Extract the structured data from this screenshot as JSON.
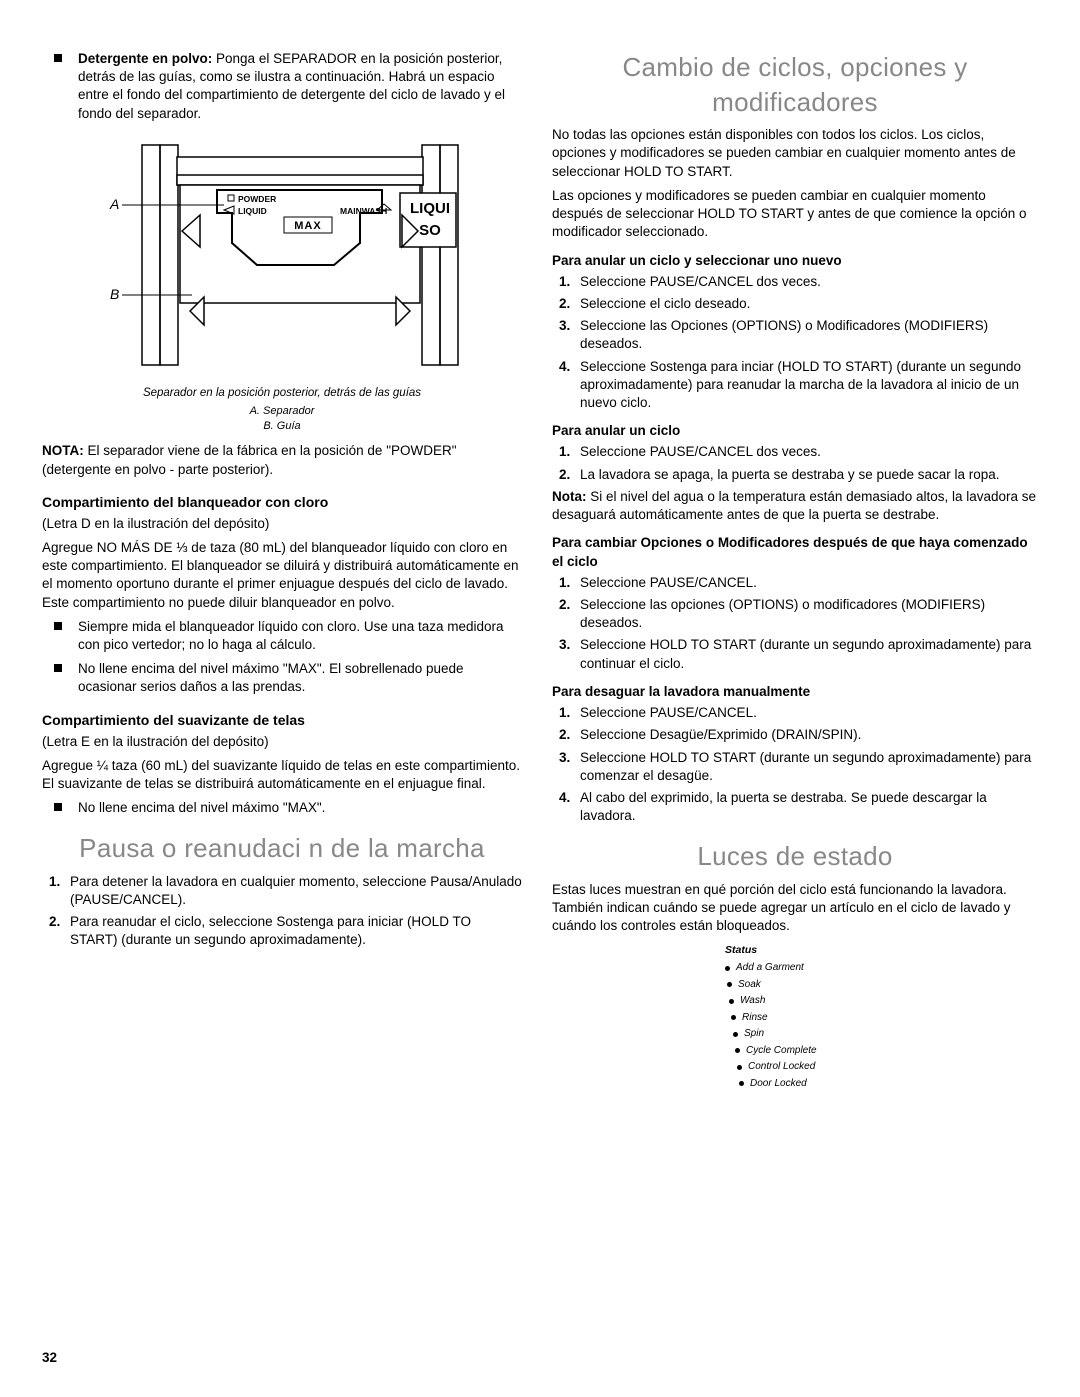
{
  "left": {
    "powder_intro_bold": "Detergente en polvo:",
    "powder_intro_rest": " Ponga el SEPARADOR en la posición posterior, detrás de las guías, como se ilustra a continuación. Habrá un espacio entre el fondo del compartimiento de detergente del ciclo de lavado y el fondo del separador.",
    "diagram": {
      "label_A": "A",
      "label_B": "B",
      "powder": "POWDER",
      "liquid": "LIQUID",
      "mainwash": "MAINWASH",
      "max": "MAX",
      "liqui": "LIQUI",
      "so": "SO"
    },
    "diagram_caption": "Separador en la posición posterior, detrás de las guías",
    "diagram_legend_a": "A. Separador",
    "diagram_legend_b": "B. Guía",
    "nota_bold": "NOTA:",
    "nota_rest": " El separador viene de la fábrica en la posición de \"POWDER\" (detergente en polvo - parte posterior).",
    "bleach_heading": "Compartimiento del blanqueador con cloro",
    "bleach_letra": "(Letra D en la ilustración del depósito)",
    "bleach_p": "Agregue NO MÁS DE ⅓ de taza (80 mL) del blanqueador líquido con cloro en este compartimiento. El blanqueador se diluirá y distribuirá automáticamente en el momento oportuno durante el primer enjuague después del ciclo de lavado. Este compartimiento no puede diluir blanqueador en polvo.",
    "bleach_li1": "Siempre mida el blanqueador líquido con cloro. Use una taza medidora con pico vertedor; no lo haga al cálculo.",
    "bleach_li2": "No llene encima del nivel máximo \"MAX\". El sobrellenado puede ocasionar serios daños a las prendas.",
    "softener_heading": "Compartimiento del suavizante de telas",
    "softener_letra": "(Letra E en la ilustración del depósito)",
    "softener_p": "Agregue ¼ taza (60 mL) del suavizante líquido de telas en este compartimiento. El suavizante de telas se distribuirá automáticamente en el enjuague final.",
    "softener_li1": "No llene encima del nivel máximo \"MAX\".",
    "pausa_heading": "Pausa o reanudaci n de la marcha",
    "pausa_li1": "Para detener la lavadora en cualquier momento, seleccione Pausa/Anulado (PAUSE/CANCEL).",
    "pausa_li2": "Para reanudar el ciclo, seleccione Sostenga para iniciar (HOLD TO START) (durante un segundo aproximadamente)."
  },
  "right": {
    "cambio_heading": "Cambio de ciclos, opciones y modificadores",
    "cambio_p1": "No todas las opciones están disponibles con todos los ciclos. Los ciclos, opciones y modificadores se pueden cambiar en cualquier momento antes de seleccionar HOLD TO START.",
    "cambio_p2": "Las opciones y modificadores se pueden cambiar en cualquier momento después de seleccionar HOLD TO START y antes de que comience la opción o modificador seleccionado.",
    "anular_nuevo_h": "Para anular un ciclo y seleccionar uno nuevo",
    "anular_nuevo_l1": "Seleccione PAUSE/CANCEL dos veces.",
    "anular_nuevo_l2": "Seleccione el ciclo deseado.",
    "anular_nuevo_l3": "Seleccione las Opciones (OPTIONS) o Modificadores (MODIFIERS) deseados.",
    "anular_nuevo_l4": "Seleccione Sostenga para inciar (HOLD TO START) (durante un segundo aproximadamente) para reanudar la marcha de la lavadora al inicio de un nuevo ciclo.",
    "anular_h": "Para anular un ciclo",
    "anular_l1": "Seleccione PAUSE/CANCEL dos veces.",
    "anular_l2": "La lavadora se apaga, la puerta se destraba y se puede sacar la ropa.",
    "nota2_bold": "Nota:",
    "nota2_rest": " Si el nivel del agua o la temperatura están demasiado altos, la lavadora se desaguará automáticamente antes de que la puerta se destrabe.",
    "cambiar_opc_h": "Para cambiar Opciones o Modificadores después de que haya comenzado el ciclo",
    "cambiar_opc_l1": "Seleccione PAUSE/CANCEL.",
    "cambiar_opc_l2": "Seleccione las opciones (OPTIONS) o modificadores (MODIFIERS) deseados.",
    "cambiar_opc_l3": "Seleccione HOLD TO START (durante un segundo aproximadamente) para continuar el ciclo.",
    "desaguar_h": "Para desaguar la lavadora manualmente",
    "desaguar_l1": "Seleccione PAUSE/CANCEL.",
    "desaguar_l2": "Seleccione Desagüe/Exprimido (DRAIN/SPIN).",
    "desaguar_l3": "Seleccione HOLD TO START (durante un segundo aproximadamente) para comenzar el desagüe.",
    "desaguar_l4": "Al cabo del exprimido, la puerta se destraba. Se puede descargar la lavadora.",
    "luces_heading": "Luces de estado",
    "luces_p": "Estas luces muestran en qué porción del ciclo está funcionando la lavadora. También indican cuándo se puede agregar un artículo en el ciclo de lavado y cuándo los controles están bloqueados.",
    "status_title": "Status",
    "status_items": [
      "Add a Garment",
      "Soak",
      "Wash",
      "Rinse",
      "Spin",
      "Cycle Complete",
      "Control Locked",
      "Door Locked"
    ]
  },
  "page_number": "32"
}
